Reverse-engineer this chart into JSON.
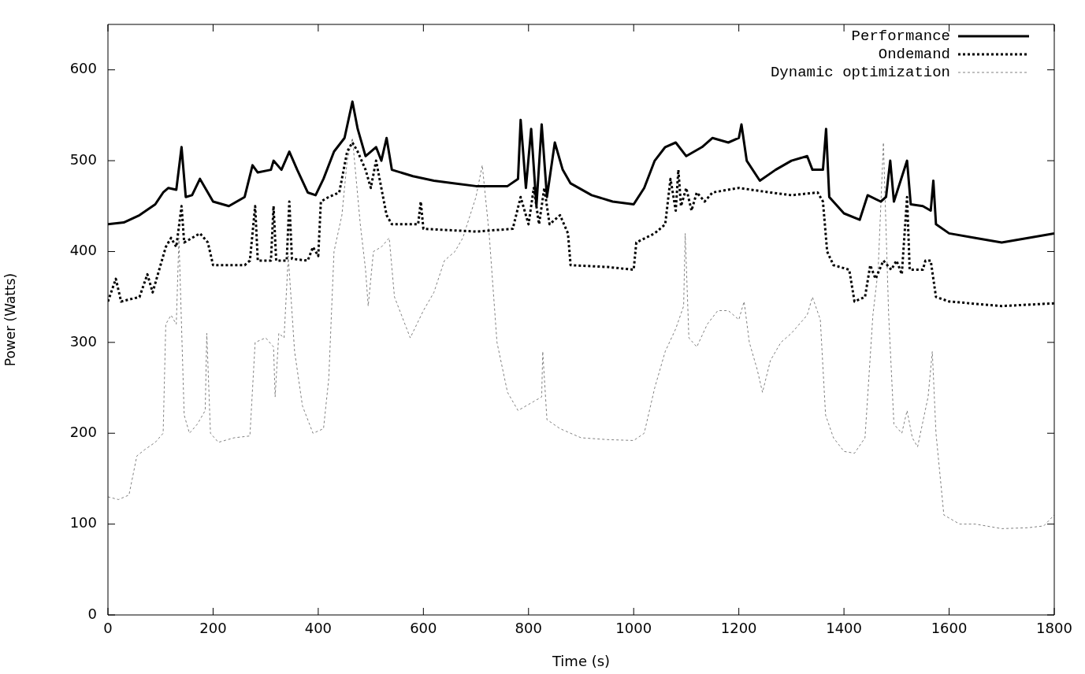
{
  "chart_data": {
    "type": "line",
    "xlabel": "Time (s)",
    "ylabel": "Power (Watts)",
    "xlim": [
      0,
      1800
    ],
    "xticks": [
      0,
      200,
      400,
      600,
      800,
      1000,
      1200,
      1400,
      1600,
      1800
    ],
    "ylim": [
      0,
      650
    ],
    "yticks": [
      0,
      100,
      200,
      300,
      400,
      500,
      600
    ],
    "grid": false,
    "legend": "top right",
    "marker": "none",
    "series": [
      {
        "name": "Performance",
        "color": "#000000",
        "line_style": "solid",
        "x": [
          0,
          30,
          60,
          90,
          105,
          115,
          130,
          140,
          148,
          160,
          175,
          185,
          200,
          230,
          260,
          275,
          285,
          310,
          315,
          330,
          345,
          360,
          380,
          395,
          410,
          430,
          450,
          465,
          475,
          490,
          510,
          520,
          530,
          540,
          580,
          620,
          660,
          700,
          760,
          780,
          785,
          795,
          805,
          815,
          825,
          835,
          850,
          865,
          880,
          920,
          960,
          1000,
          1020,
          1040,
          1060,
          1080,
          1100,
          1130,
          1150,
          1180,
          1200,
          1205,
          1215,
          1240,
          1270,
          1300,
          1330,
          1340,
          1360,
          1366,
          1372,
          1400,
          1430,
          1445,
          1470,
          1480,
          1488,
          1495,
          1520,
          1527,
          1550,
          1565,
          1570,
          1575,
          1600,
          1650,
          1700,
          1750,
          1800
        ],
        "values": [
          430,
          432,
          440,
          452,
          465,
          470,
          468,
          515,
          460,
          462,
          480,
          470,
          455,
          450,
          460,
          495,
          487,
          490,
          500,
          490,
          510,
          490,
          465,
          462,
          480,
          510,
          525,
          565,
          535,
          505,
          515,
          500,
          525,
          490,
          483,
          478,
          475,
          472,
          472,
          480,
          545,
          470,
          535,
          450,
          540,
          460,
          520,
          490,
          475,
          462,
          455,
          452,
          470,
          500,
          515,
          520,
          505,
          515,
          525,
          520,
          525,
          540,
          500,
          478,
          490,
          500,
          505,
          490,
          490,
          535,
          460,
          442,
          435,
          462,
          455,
          460,
          500,
          455,
          500,
          452,
          450,
          445,
          478,
          430,
          420,
          415,
          410,
          415,
          420
        ]
      },
      {
        "name": "Ondemand",
        "color": "#000000",
        "line_style": "dotted",
        "x": [
          0,
          15,
          25,
          60,
          75,
          85,
          100,
          110,
          120,
          130,
          140,
          145,
          160,
          175,
          190,
          200,
          260,
          270,
          280,
          285,
          310,
          315,
          320,
          340,
          345,
          350,
          380,
          390,
          400,
          405,
          420,
          440,
          455,
          465,
          475,
          490,
          500,
          510,
          520,
          530,
          540,
          590,
          595,
          600,
          700,
          770,
          785,
          800,
          810,
          820,
          830,
          840,
          860,
          875,
          880,
          950,
          1000,
          1005,
          1040,
          1060,
          1070,
          1080,
          1085,
          1090,
          1100,
          1110,
          1120,
          1135,
          1150,
          1200,
          1260,
          1300,
          1350,
          1360,
          1368,
          1380,
          1410,
          1420,
          1440,
          1450,
          1460,
          1475,
          1490,
          1500,
          1510,
          1520,
          1525,
          1550,
          1555,
          1565,
          1575,
          1600,
          1700,
          1800
        ],
        "values": [
          345,
          370,
          345,
          350,
          375,
          355,
          385,
          405,
          415,
          405,
          450,
          410,
          415,
          420,
          410,
          385,
          385,
          390,
          450,
          390,
          390,
          450,
          390,
          390,
          455,
          392,
          390,
          405,
          395,
          455,
          460,
          465,
          510,
          520,
          510,
          490,
          470,
          500,
          470,
          440,
          430,
          430,
          455,
          425,
          422,
          425,
          460,
          430,
          470,
          430,
          470,
          430,
          440,
          420,
          385,
          383,
          380,
          410,
          420,
          430,
          480,
          445,
          490,
          450,
          470,
          445,
          465,
          455,
          465,
          470,
          465,
          462,
          465,
          455,
          400,
          385,
          380,
          345,
          350,
          385,
          370,
          390,
          380,
          390,
          375,
          460,
          380,
          380,
          390,
          390,
          350,
          345,
          340,
          343
        ]
      },
      {
        "name": "Dynamic optimization",
        "color": "#808080",
        "line_style": "dotted",
        "x": [
          0,
          20,
          40,
          55,
          70,
          90,
          105,
          110,
          120,
          130,
          135,
          145,
          155,
          170,
          185,
          188,
          195,
          210,
          240,
          270,
          280,
          300,
          315,
          318,
          325,
          335,
          343,
          355,
          370,
          390,
          410,
          420,
          430,
          445,
          455,
          465,
          480,
          490,
          495,
          505,
          520,
          535,
          545,
          565,
          575,
          600,
          620,
          640,
          660,
          675,
          700,
          712,
          725,
          740,
          760,
          780,
          810,
          825,
          827,
          835,
          860,
          900,
          950,
          1000,
          1020,
          1040,
          1060,
          1080,
          1095,
          1098,
          1105,
          1120,
          1140,
          1160,
          1180,
          1200,
          1210,
          1220,
          1235,
          1245,
          1260,
          1280,
          1300,
          1330,
          1340,
          1355,
          1365,
          1380,
          1400,
          1420,
          1440,
          1455,
          1465,
          1475,
          1485,
          1495,
          1510,
          1520,
          1530,
          1540,
          1560,
          1568,
          1575,
          1590,
          1620,
          1650,
          1700,
          1750,
          1780,
          1800
        ],
        "values": [
          130,
          127,
          132,
          175,
          182,
          190,
          200,
          320,
          330,
          320,
          415,
          220,
          200,
          210,
          225,
          310,
          200,
          190,
          195,
          197,
          300,
          305,
          295,
          240,
          310,
          305,
          395,
          290,
          230,
          200,
          205,
          260,
          400,
          440,
          500,
          525,
          430,
          380,
          340,
          400,
          405,
          415,
          350,
          320,
          305,
          335,
          355,
          390,
          400,
          415,
          460,
          495,
          420,
          300,
          245,
          225,
          235,
          240,
          290,
          215,
          205,
          195,
          193,
          192,
          200,
          250,
          290,
          315,
          340,
          420,
          305,
          295,
          320,
          335,
          335,
          325,
          345,
          300,
          270,
          245,
          280,
          300,
          310,
          330,
          350,
          325,
          220,
          195,
          180,
          178,
          195,
          330,
          380,
          520,
          330,
          210,
          200,
          225,
          195,
          185,
          240,
          290,
          200,
          110,
          100,
          100,
          95,
          96,
          98,
          110
        ]
      }
    ]
  }
}
